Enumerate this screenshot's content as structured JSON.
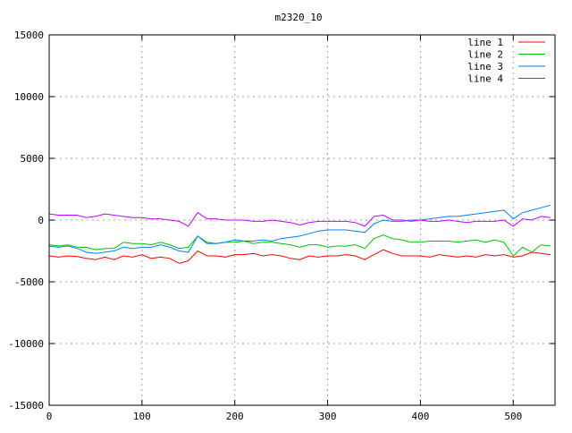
{
  "chart_data": {
    "type": "line",
    "title": "m2320_10",
    "xlabel": "",
    "ylabel": "",
    "xlim": [
      0,
      545
    ],
    "ylim": [
      -15000,
      15000
    ],
    "xticks": [
      "0",
      "100",
      "200",
      "300",
      "400",
      "500"
    ],
    "yticks": [
      "15000",
      "10000",
      "5000",
      "0",
      "-5000",
      "-10000",
      "-15000"
    ],
    "grid": true,
    "legend_position": "top-right",
    "x": [
      0,
      10,
      20,
      30,
      40,
      50,
      60,
      70,
      80,
      90,
      100,
      110,
      120,
      130,
      140,
      150,
      160,
      170,
      180,
      190,
      200,
      210,
      220,
      230,
      240,
      250,
      260,
      270,
      280,
      290,
      300,
      310,
      320,
      330,
      340,
      350,
      360,
      370,
      380,
      390,
      400,
      410,
      420,
      430,
      440,
      450,
      460,
      470,
      480,
      490,
      500,
      510,
      520,
      530,
      540
    ],
    "series": [
      {
        "name": "line 1",
        "color": "#ff0000",
        "values": [
          -2900,
          -3000,
          -2900,
          -2950,
          -3100,
          -3200,
          -3000,
          -3200,
          -2900,
          -3000,
          -2800,
          -3100,
          -3000,
          -3100,
          -3500,
          -3300,
          -2500,
          -2900,
          -2900,
          -3000,
          -2800,
          -2800,
          -2700,
          -2900,
          -2800,
          -2900,
          -3100,
          -3200,
          -2900,
          -3000,
          -2900,
          -2900,
          -2800,
          -2900,
          -3200,
          -2800,
          -2400,
          -2700,
          -2900,
          -2900,
          -2900,
          -3000,
          -2800,
          -2900,
          -3000,
          -2900,
          -3000,
          -2800,
          -2900,
          -2800,
          -3000,
          -2900,
          -2600,
          -2700,
          -2800
        ]
      },
      {
        "name": "line 2",
        "color": "#00c000",
        "values": [
          -2000,
          -2100,
          -2000,
          -2200,
          -2200,
          -2400,
          -2300,
          -2300,
          -1800,
          -1900,
          -1900,
          -2000,
          -1800,
          -2000,
          -2300,
          -2200,
          -1300,
          -1800,
          -1900,
          -1800,
          -1800,
          -1700,
          -1900,
          -1800,
          -1800,
          -1900,
          -2000,
          -2200,
          -2000,
          -2000,
          -2200,
          -2100,
          -2100,
          -2000,
          -2300,
          -1500,
          -1200,
          -1500,
          -1600,
          -1800,
          -1800,
          -1700,
          -1700,
          -1700,
          -1800,
          -1700,
          -1600,
          -1800,
          -1600,
          -1800,
          -2900,
          -2200,
          -2600,
          -2000,
          -2100
        ]
      },
      {
        "name": "line 3",
        "color": "#0080ff",
        "values": [
          -2100,
          -2200,
          -2100,
          -2300,
          -2600,
          -2700,
          -2600,
          -2500,
          -2200,
          -2300,
          -2200,
          -2200,
          -2000,
          -2200,
          -2500,
          -2600,
          -1300,
          -1900,
          -1900,
          -1800,
          -1600,
          -1700,
          -1700,
          -1600,
          -1700,
          -1500,
          -1400,
          -1300,
          -1100,
          -900,
          -800,
          -800,
          -800,
          -900,
          -1000,
          -300,
          0,
          -100,
          -100,
          0,
          0,
          100,
          200,
          300,
          300,
          400,
          500,
          600,
          700,
          800,
          100,
          600,
          800,
          1000,
          1200
        ]
      },
      {
        "name": "line 4",
        "color": "#c000ff",
        "values": [
          500,
          400,
          400,
          400,
          200,
          300,
          500,
          400,
          300,
          200,
          200,
          100,
          100,
          0,
          -100,
          -500,
          600,
          100,
          100,
          0,
          0,
          0,
          -100,
          -100,
          0,
          -100,
          -200,
          -400,
          -200,
          -100,
          -100,
          -100,
          -100,
          -200,
          -500,
          300,
          400,
          0,
          0,
          -100,
          0,
          -100,
          -100,
          0,
          -100,
          -200,
          -100,
          -100,
          -100,
          0,
          -500,
          100,
          0,
          300,
          200
        ]
      }
    ]
  }
}
